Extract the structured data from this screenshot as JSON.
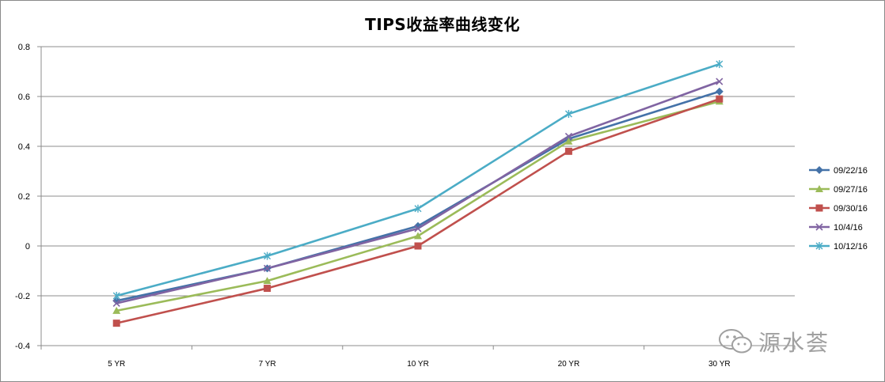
{
  "chart_data": {
    "type": "line",
    "title": "TIPS收益率曲线变化",
    "categories": [
      "5 YR",
      "7 YR",
      "10 YR",
      "20 YR",
      "30 YR"
    ],
    "ylim": [
      -0.4,
      0.8
    ],
    "yticks": [
      "0.8",
      "0.6",
      "0.4",
      "0.2",
      "0",
      "-0.2",
      "-0.4"
    ],
    "grid": true,
    "legend_position": "right",
    "series": [
      {
        "name": "09/22/16",
        "color": "#4472a8",
        "marker": "diamond",
        "values": [
          -0.22,
          -0.09,
          0.08,
          0.43,
          0.62
        ]
      },
      {
        "name": "09/27/16",
        "color": "#9bbb59",
        "marker": "triangle",
        "values": [
          -0.26,
          -0.14,
          0.04,
          0.42,
          0.58
        ]
      },
      {
        "name": "09/30/16",
        "color": "#c0504d",
        "marker": "square",
        "values": [
          -0.31,
          -0.17,
          0.0,
          0.38,
          0.59
        ]
      },
      {
        "name": "10/4/16",
        "color": "#8064a2",
        "marker": "x",
        "values": [
          -0.23,
          -0.09,
          0.07,
          0.44,
          0.66
        ]
      },
      {
        "name": "10/12/16",
        "color": "#4bacc6",
        "marker": "star",
        "values": [
          -0.2,
          -0.04,
          0.15,
          0.53,
          0.73
        ]
      }
    ]
  },
  "watermark": {
    "text": "源水荟",
    "icon": "wechat-icon"
  }
}
